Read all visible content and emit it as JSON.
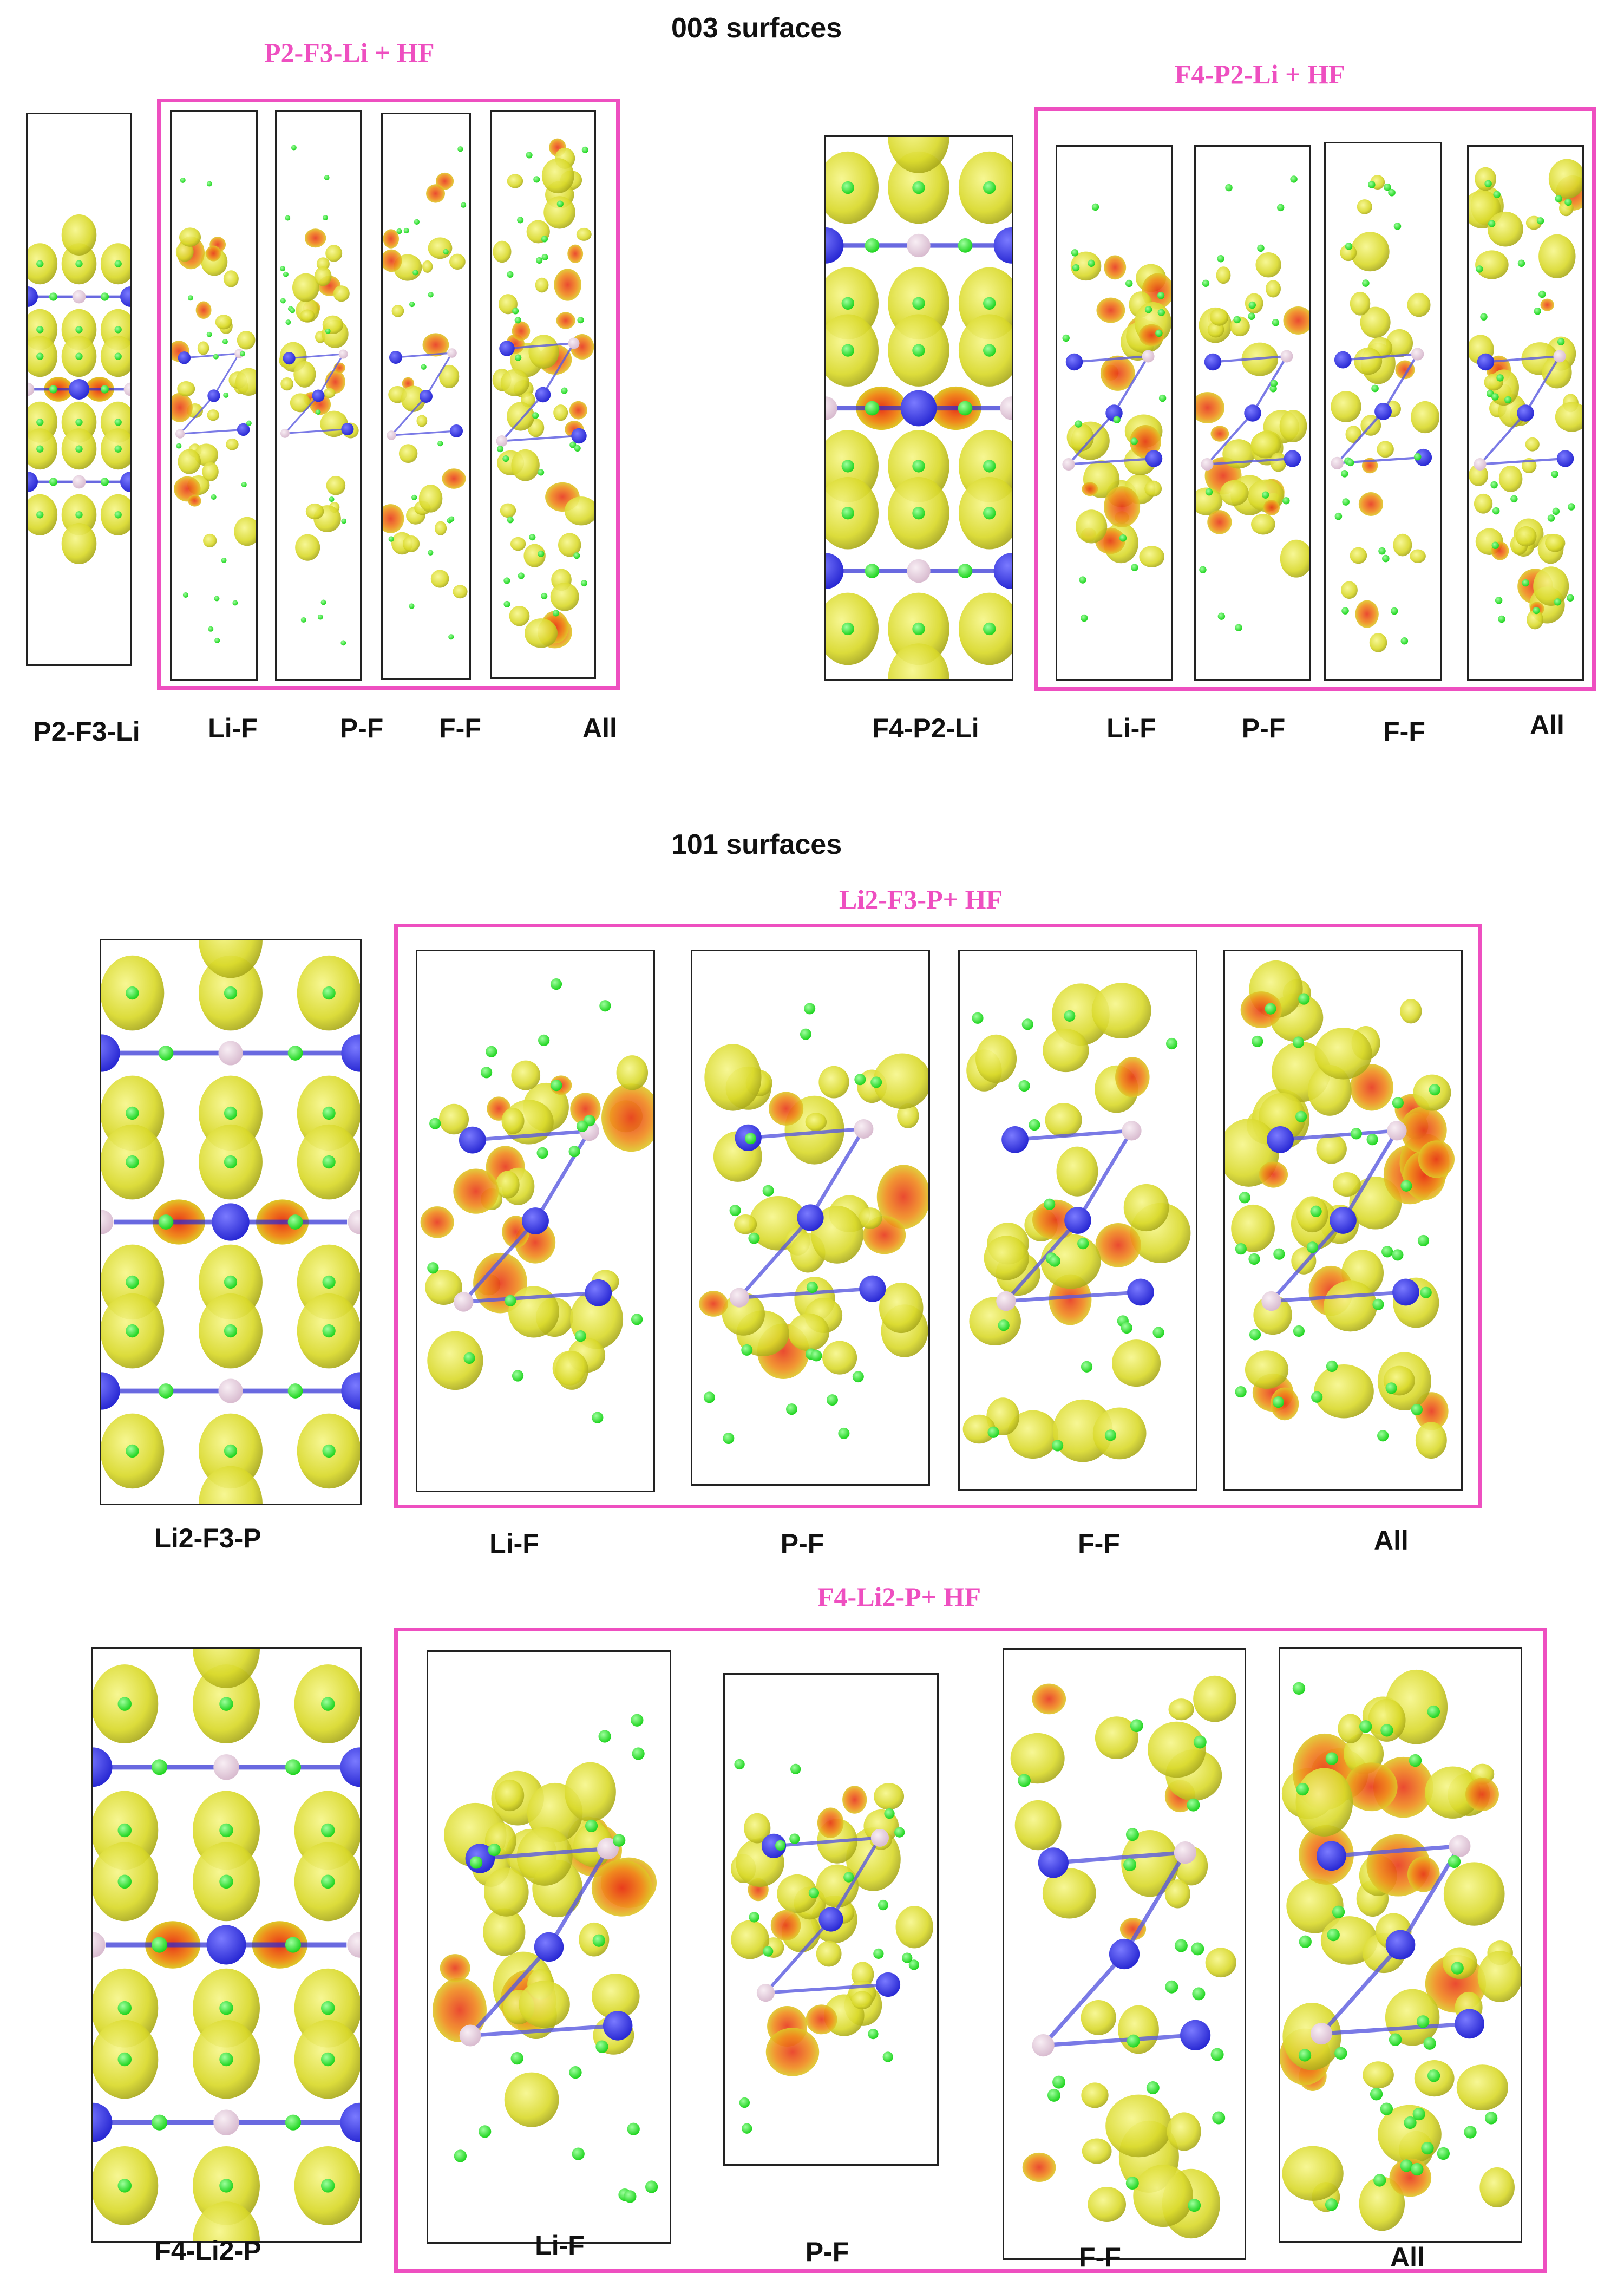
{
  "sections": {
    "s003": {
      "title": "003 surfaces"
    },
    "s101": {
      "title": "101 surfaces"
    }
  },
  "groups": {
    "g1": {
      "title": "P2-F3-Li + HF"
    },
    "g2": {
      "title": "F4-P2-Li + HF"
    },
    "g3": {
      "title": "Li2-F3-P+ HF"
    },
    "g4": {
      "title": "F4-Li2-P+ HF"
    }
  },
  "rows": {
    "r1": {
      "labels": [
        "P2-F3-Li",
        "Li-F",
        "P-F",
        "F-F",
        "All"
      ]
    },
    "r2": {
      "labels": [
        "F4-P2-Li",
        "Li-F",
        "P-F",
        "F-F",
        "All"
      ]
    },
    "r3": {
      "labels": [
        "Li2-F3-P",
        "Li-F",
        "P-F",
        "F-F",
        "All"
      ]
    },
    "r4": {
      "labels": [
        "F4-Li2-P",
        "Li-F",
        "P-F",
        "F-F",
        "All"
      ]
    }
  },
  "colors": {
    "group_border": "#ee4fc0",
    "lithium_atom": "#2a2ad4",
    "phosphorus_atom": "#d9bcd0",
    "fluorine_atom": "#1fd41f",
    "isosurface": "#d9d92a",
    "isosurface_core": "#e8371a"
  }
}
